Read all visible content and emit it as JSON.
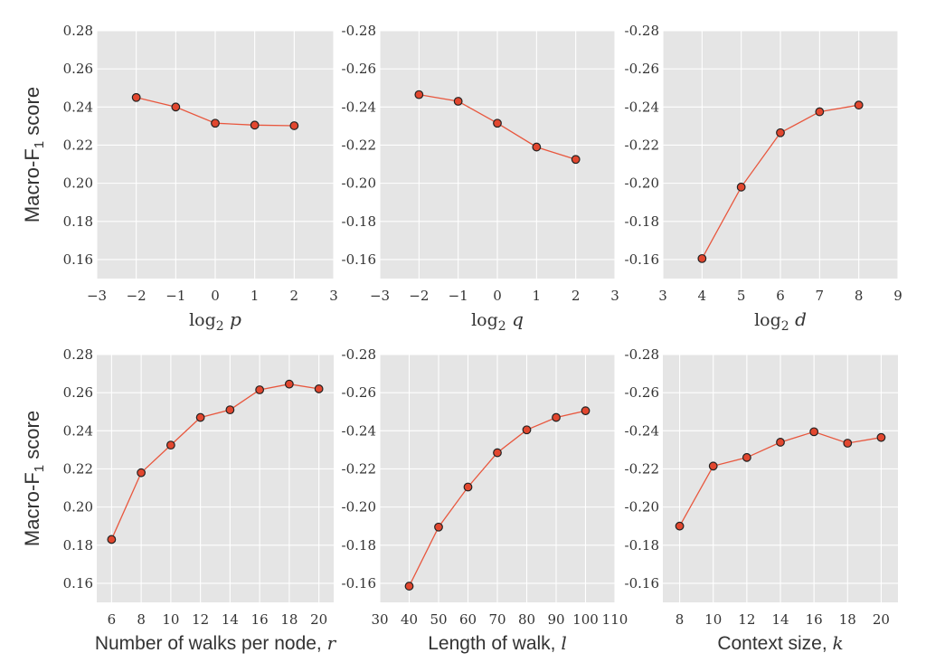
{
  "chart_data": [
    {
      "type": "line",
      "xlabel_prefix": "log",
      "xlabel_sub": "2",
      "xlabel_symbol": "p",
      "ylabel": "Macro-F",
      "ylabel_sub": "1",
      "ylabel_suffix": " score",
      "x": [
        -2,
        -1,
        0,
        1,
        2
      ],
      "y": [
        0.245,
        0.24,
        0.2315,
        0.2305,
        0.2302
      ],
      "xlim": [
        -3,
        3
      ],
      "ylim": [
        0.15,
        0.28
      ],
      "xticks": [
        -3,
        -2,
        -1,
        0,
        1,
        2,
        3
      ],
      "xtick_labels": [
        "−3",
        "−2",
        "−1",
        "0",
        "1",
        "2",
        "3"
      ],
      "yticks": [
        0.16,
        0.18,
        0.2,
        0.22,
        0.24,
        0.26,
        0.28
      ],
      "ytick_labels": [
        "0.16",
        "0.18",
        "0.20",
        "0.22",
        "0.24",
        "0.26",
        "0.28"
      ],
      "grid": true
    },
    {
      "type": "line",
      "xlabel_prefix": "log",
      "xlabel_sub": "2",
      "xlabel_symbol": "q",
      "x": [
        -2,
        -1,
        0,
        1,
        2
      ],
      "y": [
        0.2465,
        0.243,
        0.2315,
        0.219,
        0.2125
      ],
      "xlim": [
        -3,
        3
      ],
      "ylim": [
        0.15,
        0.28
      ],
      "xticks": [
        -3,
        -2,
        -1,
        0,
        1,
        2,
        3
      ],
      "xtick_labels": [
        "−3",
        "−2",
        "−1",
        "0",
        "1",
        "2",
        "3"
      ],
      "yticks": [
        0.16,
        0.18,
        0.2,
        0.22,
        0.24,
        0.26,
        0.28
      ],
      "ytick_labels": [
        "-0.16",
        "-0.18",
        "-0.20",
        "-0.22",
        "-0.24",
        "-0.26",
        "-0.28"
      ],
      "grid": true
    },
    {
      "type": "line",
      "xlabel_prefix": "log",
      "xlabel_sub": "2",
      "xlabel_symbol": "d",
      "x": [
        4,
        5,
        6,
        7,
        8
      ],
      "y": [
        0.1605,
        0.198,
        0.2265,
        0.2375,
        0.241
      ],
      "xlim": [
        3,
        9
      ],
      "ylim": [
        0.15,
        0.28
      ],
      "xticks": [
        3,
        4,
        5,
        6,
        7,
        8,
        9
      ],
      "xtick_labels": [
        "3",
        "4",
        "5",
        "6",
        "7",
        "8",
        "9"
      ],
      "yticks": [
        0.16,
        0.18,
        0.2,
        0.22,
        0.24,
        0.26,
        0.28
      ],
      "ytick_labels": [
        "-0.16",
        "-0.18",
        "-0.20",
        "-0.22",
        "-0.24",
        "-0.26",
        "-0.28"
      ],
      "grid": true
    },
    {
      "type": "line",
      "xlabel_text": "Number of walks per node, ",
      "xlabel_symbol": "r",
      "ylabel": "Macro-F",
      "ylabel_sub": "1",
      "ylabel_suffix": " score",
      "x": [
        6,
        8,
        10,
        12,
        14,
        16,
        18,
        20
      ],
      "y": [
        0.183,
        0.218,
        0.2325,
        0.247,
        0.251,
        0.2615,
        0.2645,
        0.262
      ],
      "xlim": [
        5,
        21
      ],
      "ylim": [
        0.15,
        0.28
      ],
      "xticks": [
        6,
        8,
        10,
        12,
        14,
        16,
        18,
        20
      ],
      "xtick_labels": [
        "6",
        "8",
        "10",
        "12",
        "14",
        "16",
        "18",
        "20"
      ],
      "yticks": [
        0.16,
        0.18,
        0.2,
        0.22,
        0.24,
        0.26,
        0.28
      ],
      "ytick_labels": [
        "0.16",
        "0.18",
        "0.20",
        "0.22",
        "0.24",
        "0.26",
        "0.28"
      ],
      "grid": true
    },
    {
      "type": "line",
      "xlabel_text": "Length of walk, ",
      "xlabel_symbol": "l",
      "x": [
        40,
        50,
        60,
        70,
        80,
        90,
        100
      ],
      "y": [
        0.1585,
        0.1895,
        0.2105,
        0.2285,
        0.2405,
        0.247,
        0.2505
      ],
      "xlim": [
        30,
        110
      ],
      "ylim": [
        0.15,
        0.28
      ],
      "xticks": [
        30,
        40,
        50,
        60,
        70,
        80,
        90,
        100,
        110
      ],
      "xtick_labels": [
        "30",
        "40",
        "50",
        "60",
        "70",
        "80",
        "90",
        "100",
        "110"
      ],
      "yticks": [
        0.16,
        0.18,
        0.2,
        0.22,
        0.24,
        0.26,
        0.28
      ],
      "ytick_labels": [
        "-0.16",
        "-0.18",
        "-0.20",
        "-0.22",
        "-0.24",
        "-0.26",
        "-0.28"
      ],
      "grid": true
    },
    {
      "type": "line",
      "xlabel_text": "Context size, ",
      "xlabel_symbol": "k",
      "x": [
        8,
        10,
        12,
        14,
        16,
        18,
        20
      ],
      "y": [
        0.19,
        0.2215,
        0.226,
        0.234,
        0.2395,
        0.2335,
        0.2365
      ],
      "xlim": [
        7,
        21
      ],
      "ylim": [
        0.15,
        0.28
      ],
      "xticks": [
        8,
        10,
        12,
        14,
        16,
        18,
        20
      ],
      "xtick_labels": [
        "8",
        "10",
        "12",
        "14",
        "16",
        "18",
        "20"
      ],
      "yticks": [
        0.16,
        0.18,
        0.2,
        0.22,
        0.24,
        0.26,
        0.28
      ],
      "ytick_labels": [
        "-0.16",
        "-0.18",
        "-0.20",
        "-0.22",
        "-0.24",
        "-0.26",
        "-0.28"
      ],
      "grid": true
    }
  ]
}
